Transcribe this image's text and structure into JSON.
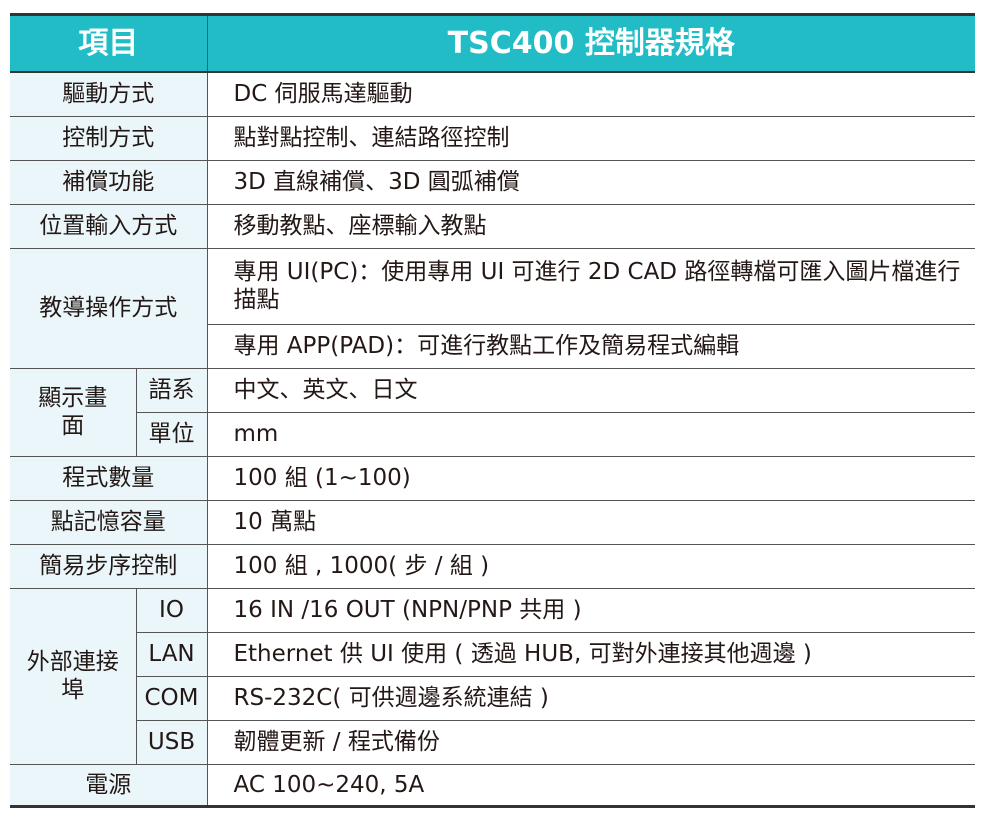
{
  "header": {
    "item": "項目",
    "spec": "TSC400 控制器規格"
  },
  "rows": {
    "drive": {
      "label": "驅動方式",
      "value": "DC 伺服馬達驅動"
    },
    "control": {
      "label": "控制方式",
      "value": "點對點控制、連結路徑控制"
    },
    "compensation": {
      "label": "補償功能",
      "value": "3D 直線補償、3D 圓弧補償"
    },
    "position": {
      "label": "位置輸入方式",
      "value": "移動教點、座標輸入教點"
    },
    "teaching": {
      "label": "教導操作方式",
      "values": [
        "專用 UI(PC)：使用專用 UI 可進行 2D CAD 路徑轉檔可匯入圖片檔進行描點",
        "專用 APP(PAD)：可進行教點工作及簡易程式編輯"
      ]
    },
    "display": {
      "label": "顯示畫面",
      "subs": [
        {
          "label": "語系",
          "value": "中文、英文、日文"
        },
        {
          "label": "單位",
          "value": "mm"
        }
      ]
    },
    "programs": {
      "label": "程式數量",
      "value": "100 組 (1~100)"
    },
    "memory": {
      "label": "點記憶容量",
      "value": "10 萬點"
    },
    "steps": {
      "label": "簡易步序控制",
      "value": "100 組 , 1000( 步 / 組 )"
    },
    "ports": {
      "label": "外部連接埠",
      "subs": [
        {
          "label": "IO",
          "value": "16 IN /16 OUT (NPN/PNP 共用 )"
        },
        {
          "label": "LAN",
          "value": "Ethernet 供 UI 使用 ( 透過 HUB, 可對外連接其他週邊 )"
        },
        {
          "label": "COM",
          "value": "RS-232C( 可供週邊系統連結 )"
        },
        {
          "label": "USB",
          "value": "韌體更新 / 程式備份"
        }
      ]
    },
    "power": {
      "label": "電源",
      "value": "AC 100~240, 5A"
    }
  },
  "colors": {
    "header_bg": "#21bcc6",
    "label_bg": "#eaf6f9"
  }
}
